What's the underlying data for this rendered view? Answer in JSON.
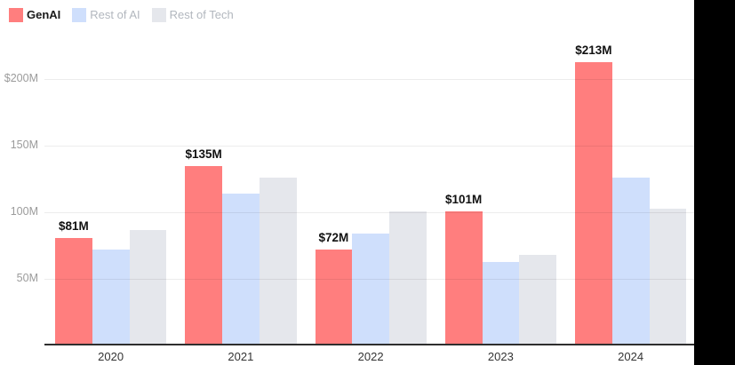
{
  "legend": [
    {
      "label": "GenAI",
      "color": "#ff7e7e",
      "label_color": "#1a1a1a",
      "emphasized": true
    },
    {
      "label": "Rest of AI",
      "color": "#cfdffc",
      "label_color": "#b2b7be",
      "emphasized": false
    },
    {
      "label": "Rest of Tech",
      "color": "#e5e7ec",
      "label_color": "#b2b7be",
      "emphasized": false
    }
  ],
  "chart_data": {
    "type": "bar",
    "title": "",
    "xlabel": "",
    "ylabel": "",
    "categories": [
      "2020",
      "2021",
      "2022",
      "2023",
      "2024"
    ],
    "series": [
      {
        "name": "GenAI",
        "color": "#ff7e7e",
        "values": [
          81,
          135,
          72,
          101,
          213
        ],
        "data_labels": [
          "$81M",
          "$135M",
          "$72M",
          "$101M",
          "$213M"
        ]
      },
      {
        "name": "Rest of AI",
        "color": "#cfdffc",
        "values": [
          72,
          114,
          84,
          63,
          126
        ]
      },
      {
        "name": "Rest of Tech",
        "color": "#e5e7ec",
        "values": [
          87,
          126,
          101,
          68,
          103
        ]
      }
    ],
    "y_ticks": [
      {
        "label": "$200M",
        "value": 200
      },
      {
        "label": "150M",
        "value": 150
      },
      {
        "label": "100M",
        "value": 100
      },
      {
        "label": "50M",
        "value": 50
      }
    ],
    "ylim": [
      0,
      250
    ],
    "grid": "horizontal",
    "legend_position": "top-left",
    "unit": "M USD"
  }
}
